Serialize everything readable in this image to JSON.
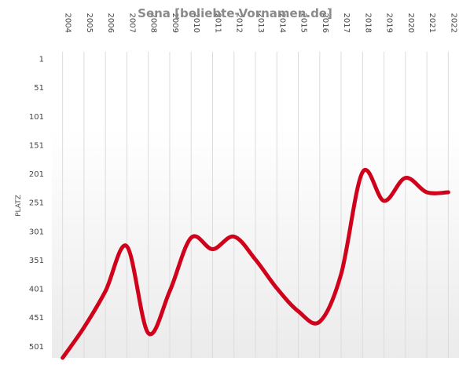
{
  "chart_data": {
    "type": "line",
    "title": "Sena [beliebte-Vornamen.de]",
    "xlabel": "",
    "ylabel": "PLATZ",
    "x": [
      "2004",
      "2005",
      "2006",
      "2007",
      "2008",
      "2009",
      "2010",
      "2011",
      "2012",
      "2013",
      "2014",
      "2015",
      "2016",
      "2017",
      "2018",
      "2019",
      "2020",
      "2021",
      "2022"
    ],
    "y_ticks": [
      1,
      51,
      101,
      151,
      201,
      251,
      301,
      351,
      401,
      451,
      501
    ],
    "ylim": [
      1,
      521
    ],
    "y_inverted": true,
    "grid": true,
    "legend": "none",
    "series": [
      {
        "color": "#d0021b",
        "values": [
          521,
          468,
          405,
          327,
          478,
          405,
          312,
          332,
          310,
          350,
          400,
          440,
          458,
          375,
          198,
          248,
          208,
          233,
          233
        ]
      }
    ]
  }
}
